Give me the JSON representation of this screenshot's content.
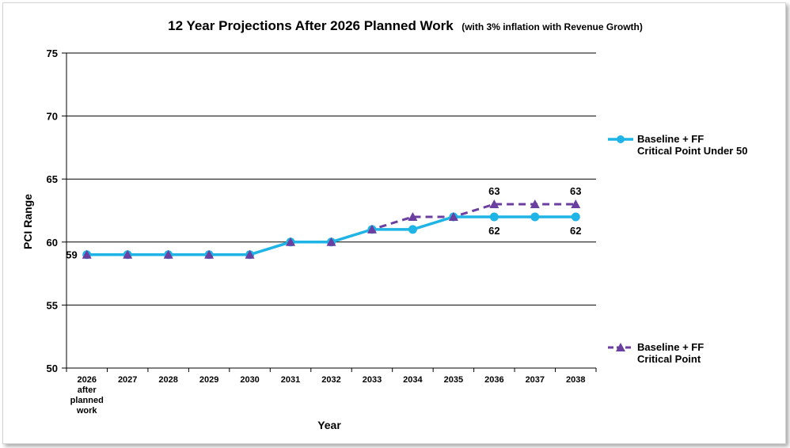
{
  "chart_data": {
    "type": "line",
    "title": "12 Year Projections After 2026 Planned Work",
    "subtitle": "(with 3% inflation with Revenue Growth)",
    "xlabel": "Year",
    "ylabel": "PCI Range",
    "ylim": [
      50,
      75
    ],
    "yticks": [
      "50",
      "55",
      "60",
      "65",
      "70",
      "75"
    ],
    "grid": "horizontal",
    "legend_position": "right",
    "categories": [
      [
        "2026",
        "after",
        "planned",
        "work"
      ],
      [
        "2027"
      ],
      [
        "2028"
      ],
      [
        "2029"
      ],
      [
        "2030"
      ],
      [
        "2031"
      ],
      [
        "2032"
      ],
      [
        "2033"
      ],
      [
        "2034"
      ],
      [
        "2035"
      ],
      [
        "2036"
      ],
      [
        "2037"
      ],
      [
        "2038"
      ]
    ],
    "series": [
      {
        "name_lines": [
          "Baseline + FF",
          "Critical Point Under 50"
        ],
        "color": "#1fb4e6",
        "marker": "circle",
        "line_style": "solid",
        "values": [
          59,
          59,
          59,
          59,
          59,
          60,
          60,
          61,
          61,
          62,
          62,
          62,
          62
        ]
      },
      {
        "name_lines": [
          "Baseline + FF",
          "Critical Point"
        ],
        "color": "#6b3fa0",
        "marker": "triangle",
        "line_style": "dashed",
        "values": [
          59,
          59,
          59,
          59,
          59,
          60,
          60,
          61,
          62,
          62,
          63,
          63,
          63
        ]
      }
    ],
    "data_labels": [
      {
        "series": 0,
        "index": 0,
        "text": "59",
        "pos": "left"
      },
      {
        "series": 1,
        "index": 10,
        "text": "63",
        "pos": "above"
      },
      {
        "series": 0,
        "index": 10,
        "text": "62",
        "pos": "below"
      },
      {
        "series": 1,
        "index": 12,
        "text": "63",
        "pos": "above"
      },
      {
        "series": 0,
        "index": 12,
        "text": "62",
        "pos": "below"
      }
    ]
  }
}
